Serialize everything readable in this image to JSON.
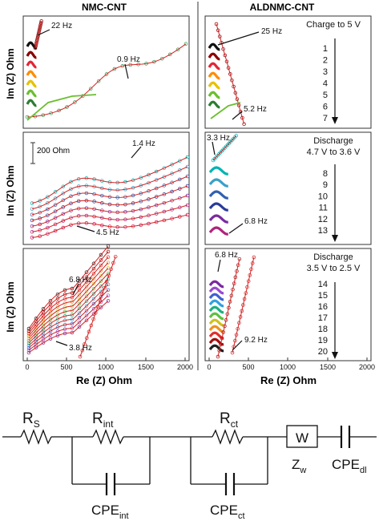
{
  "colors": {
    "frame": "#333333",
    "fit": "#d42020",
    "ramp7": [
      "#111111",
      "#8b0000",
      "#e32636",
      "#ff8c00",
      "#e6c200",
      "#6abf2e",
      "#2e7d32"
    ],
    "ramp_mid": [
      "#00b3b3",
      "#3aa0c8",
      "#3060b0",
      "#2a3a9a",
      "#7a2aa0",
      "#b0237d",
      "#d0105a"
    ],
    "ramp_low": [
      "#7a2aa0",
      "#9a4ad0",
      "#4060d0",
      "#30a0e0",
      "#20b080",
      "#60c040",
      "#d0c020",
      "#f09020",
      "#e03030",
      "#a01010",
      "#202020"
    ]
  },
  "headers": {
    "left": "NMC-CNT",
    "right": "ALDNMC-CNT"
  },
  "x_axis": {
    "label": "Re (Z) Ohm",
    "ticks": [
      "0",
      "500",
      "1000",
      "1500",
      "2000"
    ]
  },
  "y_axis": {
    "label": "Im (Z) Ohm"
  },
  "scale_bar": "200 Ohm",
  "annotations": {
    "p1_a": "22 Hz",
    "p1_b": "0.9 Hz",
    "p2_a": "1.4 Hz",
    "p2_b": "4.5 Hz",
    "p3_a": "6.8 Hz",
    "p3_b": "3.8 Hz",
    "p4_a": "25 Hz",
    "p4_b": "5.2 Hz",
    "p5_a": "3.3 Hz",
    "p5_b": "6.8 Hz",
    "p6_a": "6.8 Hz",
    "p6_b": "9.2 Hz"
  },
  "sequence": {
    "group1": {
      "title_1": "Charge to 5 V",
      "title_2": "",
      "numbers": [
        "1",
        "2",
        "3",
        "4",
        "5",
        "6",
        "7"
      ]
    },
    "group2": {
      "title_1": "Discharge",
      "title_2": "4.7 V to 3.6 V",
      "numbers": [
        "8",
        "9",
        "10",
        "11",
        "12",
        "13"
      ]
    },
    "group3": {
      "title_1": "Discharge",
      "title_2": "3.5 V to 2.5 V",
      "numbers": [
        "14",
        "15",
        "16",
        "17",
        "18",
        "19",
        "20"
      ]
    }
  },
  "circuit": {
    "rs": {
      "main": "R",
      "sub": "S"
    },
    "rint": {
      "main": "R",
      "sub": "int"
    },
    "rct": {
      "main": "R",
      "sub": "ct"
    },
    "w_box": "W",
    "zw": {
      "main": "Z",
      "sub": "w"
    },
    "cpe_dl": {
      "main": "CPE",
      "sub": "dl"
    },
    "cpe_int": {
      "main": "CPE",
      "sub": "int"
    },
    "cpe_ct": {
      "main": "CPE",
      "sub": "ct"
    }
  },
  "chart_data": [
    {
      "type": "scatter",
      "panel": "NMC-CNT charge",
      "xlim": [
        0,
        2000
      ],
      "x_ticks": [
        0,
        500,
        1000,
        1500,
        2000
      ],
      "n_curves": 7,
      "annotations": [
        "22 Hz",
        "0.9 Hz"
      ],
      "xlabel": "Re (Z) Ohm",
      "ylabel": "Im (Z) Ohm"
    },
    {
      "type": "scatter",
      "panel": "NMC-CNT discharge 4.7-3.6 V",
      "xlim": [
        0,
        2000
      ],
      "n_curves": 6,
      "annotations": [
        "1.4 Hz",
        "4.5 Hz",
        "200 Ohm"
      ],
      "xlabel": "Re (Z) Ohm",
      "ylabel": "Im (Z) Ohm"
    },
    {
      "type": "scatter",
      "panel": "NMC-CNT discharge 3.5-2.5 V",
      "xlim": [
        0,
        2000
      ],
      "n_curves": 7,
      "annotations": [
        "6.8 Hz",
        "3.8 Hz"
      ],
      "xlabel": "Re (Z) Ohm",
      "ylabel": "Im (Z) Ohm"
    },
    {
      "type": "scatter",
      "panel": "ALDNMC-CNT charge",
      "xlim": [
        0,
        2000
      ],
      "n_curves": 7,
      "annotations": [
        "25 Hz",
        "5.2 Hz"
      ],
      "legend": "Charge to 5 V (1-7)"
    },
    {
      "type": "scatter",
      "panel": "ALDNMC-CNT discharge 4.7-3.6 V",
      "xlim": [
        0,
        2000
      ],
      "n_curves": 6,
      "annotations": [
        "3.3 Hz",
        "6.8 Hz"
      ],
      "legend": "Discharge 4.7 V to 3.6 V (8-13)"
    },
    {
      "type": "scatter",
      "panel": "ALDNMC-CNT discharge 3.5-2.5 V",
      "xlim": [
        0,
        2000
      ],
      "x_ticks": [
        0,
        500,
        1000,
        1500,
        2000
      ],
      "n_curves": 7,
      "annotations": [
        "6.8 Hz",
        "9.2 Hz"
      ],
      "legend": "Discharge 3.5 V to 2.5 V (14-20)"
    }
  ]
}
